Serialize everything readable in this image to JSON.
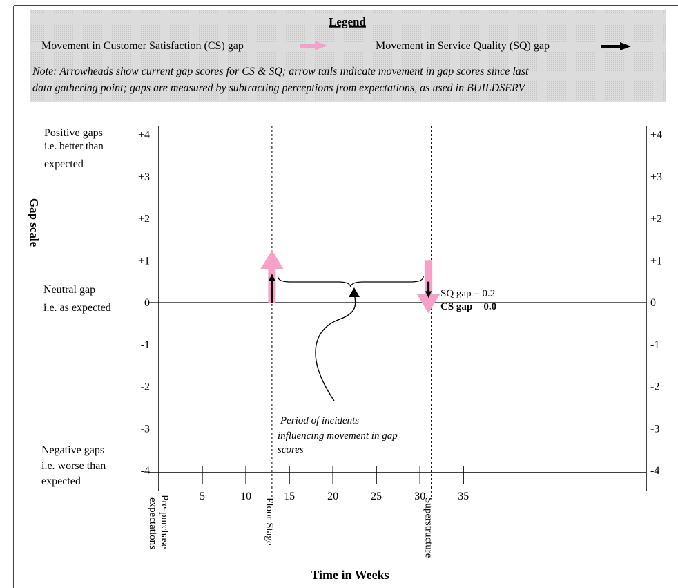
{
  "legend": {
    "title": "Legend",
    "cs_label": "Movement in Customer Satisfaction (CS) gap",
    "sq_label": "Movement in Service Quality (SQ) gap",
    "note_line1": "Note: Arrowheads show current gap scores for CS & SQ; arrow tails indicate movement in gap scores since last",
    "note_line2": "data gathering point; gaps are measured by subtracting perceptions from expectations, as used in BUILDSERV"
  },
  "labels": {
    "positive_1": "Positive gaps",
    "positive_2": "i.e. better than",
    "positive_3": "expected",
    "neutral_1": "Neutral gap",
    "neutral_2": "i.e. as expected",
    "negative_1": "Negative gaps",
    "negative_2": "i.e. worse than",
    "negative_3": "expected",
    "ylabel": "Gap scale",
    "xlabel": "Time in Weeks",
    "annotation_1": "Period of incidents",
    "annotation_2": "influencing movement in gap",
    "annotation_3": "scores",
    "sq_value_label": "SQ gap = 0.2",
    "cs_value_label": "CS gap = 0.0"
  },
  "colors": {
    "cs": "#f7a1c9",
    "sq": "#000000",
    "cs_text": "#f7a1c9",
    "legend_bg": "#d6d6d6"
  },
  "chart_data": {
    "type": "arrow-timeline",
    "xlabel": "Time in Weeks",
    "ylabel": "Gap scale",
    "xlim": [
      0,
      56
    ],
    "ylim": [
      -4,
      4
    ],
    "x_ticks": [
      5,
      10,
      15,
      20,
      25,
      30,
      35
    ],
    "y_ticks_left": [
      "+4",
      "+3",
      "+2",
      "+1",
      "0",
      "-1",
      "-2",
      "-3",
      "-4"
    ],
    "y_ticks_right": [
      "+4",
      "+3",
      "+2",
      "+1",
      "0",
      "-1",
      "-2",
      "-3",
      "-4"
    ],
    "stages": [
      {
        "label": "Pre-purchase expectations",
        "line1": "Pre-purchase",
        "line2": "expectations",
        "week": 0
      },
      {
        "label": "Floor Stage",
        "week": 13
      },
      {
        "label": "Superstructure",
        "week": 31.3
      }
    ],
    "series": [
      {
        "name": "Movement in Customer Satisfaction (CS) gap",
        "arrows": [
          {
            "week": 13,
            "from": 0,
            "to": 1
          },
          {
            "week": 31.3,
            "from": 1,
            "to": 0
          }
        ]
      },
      {
        "name": "Movement in Service Quality (SQ) gap",
        "arrows": [
          {
            "week": 13,
            "from": 0,
            "to": 0.6
          },
          {
            "week": 31.3,
            "from": 0.5,
            "to": 0.2
          }
        ]
      }
    ],
    "incident_period": [
      14,
      30
    ],
    "current_values": {
      "SQ": 0.2,
      "CS": 0.0
    }
  }
}
